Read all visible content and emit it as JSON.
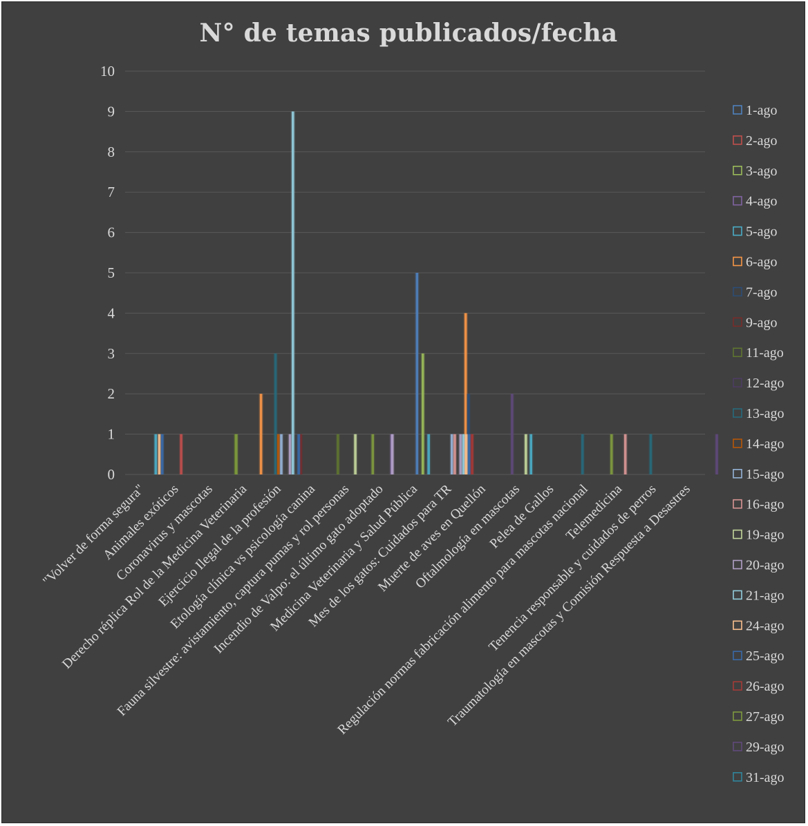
{
  "chart_data": {
    "type": "bar",
    "title": "N° de temas publicados/fecha",
    "xlabel": "",
    "ylabel": "",
    "ylim": [
      0,
      10
    ],
    "yticks": [
      0,
      1,
      2,
      3,
      4,
      5,
      6,
      7,
      8,
      9,
      10
    ],
    "grid": true,
    "legend_position": "right",
    "categories": [
      "\"Volver de forma segura\"",
      "Animales exóticos",
      "Coronavirus y mascotas",
      "Derecho réplica Rol de la Medicina Veterinaria",
      "Ejercicio Ilegal de la profesión",
      "Etología clínica vs psicología canina",
      "Fauna silvestre: avistamiento, captura pumas y rol personas",
      "Incendio de Valpo: el último gato adoptado",
      "Medicina Veterinaria y Salud Pública",
      "Mes de los gatos: Cuidados para TR",
      "Muerte de aves en Quellón",
      "Oftalmología en mascotas",
      "Pelea de Gallos",
      "Regulación normas fabricación alimento para mascotas nacional",
      "Telemedicina",
      "Tenencia responsable y cuidados de perros",
      "Traumatología en mascotas y Comisión Respuesta a Desastres"
    ],
    "series": [
      {
        "name": "1-ago",
        "color": "#4f81bd",
        "values": [
          0,
          0,
          0,
          0,
          0,
          0,
          0,
          0,
          0,
          5,
          0,
          0,
          0,
          0,
          0,
          0,
          0
        ]
      },
      {
        "name": "2-ago",
        "color": "#c0504d",
        "values": [
          0,
          0,
          1,
          0,
          0,
          0,
          0,
          0,
          0,
          0,
          0,
          0,
          0,
          0,
          0,
          0,
          0
        ]
      },
      {
        "name": "3-ago",
        "color": "#9bbb59",
        "values": [
          0,
          0,
          0,
          0,
          0,
          0,
          0,
          0,
          0,
          3,
          0,
          0,
          0,
          0,
          0,
          0,
          0
        ]
      },
      {
        "name": "4-ago",
        "color": "#8064a2",
        "values": [
          0,
          0,
          0,
          0,
          0,
          0,
          0,
          0,
          1,
          0,
          0,
          0,
          0,
          0,
          0,
          0,
          0
        ]
      },
      {
        "name": "5-ago",
        "color": "#4bacc6",
        "values": [
          0,
          1,
          0,
          0,
          0,
          0,
          0,
          0,
          0,
          1,
          0,
          0,
          1,
          0,
          0,
          0,
          0
        ]
      },
      {
        "name": "6-ago",
        "color": "#f79646",
        "values": [
          0,
          0,
          0,
          0,
          2,
          0,
          0,
          0,
          0,
          0,
          4,
          0,
          0,
          0,
          0,
          0,
          0
        ]
      },
      {
        "name": "7-ago",
        "color": "#2c4d75",
        "values": [
          0,
          0,
          0,
          0,
          0,
          0,
          0,
          0,
          0,
          0,
          2,
          0,
          0,
          0,
          0,
          0,
          0
        ]
      },
      {
        "name": "9-ago",
        "color": "#772c2a",
        "values": [
          0,
          0,
          0,
          0,
          0,
          1,
          0,
          0,
          0,
          0,
          1,
          0,
          0,
          0,
          0,
          0,
          0
        ]
      },
      {
        "name": "11-ago",
        "color": "#5f7530",
        "values": [
          0,
          0,
          0,
          1,
          0,
          0,
          1,
          0,
          0,
          0,
          0,
          0,
          0,
          0,
          0,
          0,
          0
        ]
      },
      {
        "name": "12-ago",
        "color": "#4d3b62",
        "values": [
          0,
          0,
          0,
          0,
          0,
          0,
          0,
          0,
          0,
          0,
          0,
          0,
          0,
          0,
          0,
          0,
          0
        ]
      },
      {
        "name": "13-ago",
        "color": "#276a7c",
        "values": [
          0,
          0,
          0,
          0,
          3,
          0,
          0,
          0,
          0,
          0,
          0,
          0,
          0,
          1,
          0,
          1,
          0
        ]
      },
      {
        "name": "14-ago",
        "color": "#b65708",
        "values": [
          0,
          0,
          0,
          0,
          1,
          0,
          0,
          0,
          0,
          0,
          0,
          0,
          0,
          0,
          0,
          0,
          0
        ]
      },
      {
        "name": "15-ago",
        "color": "#95b3d7",
        "values": [
          0,
          0,
          0,
          0,
          1,
          0,
          0,
          0,
          0,
          1,
          0,
          0,
          0,
          0,
          0,
          0,
          0
        ]
      },
      {
        "name": "16-ago",
        "color": "#d99694",
        "values": [
          0,
          0,
          0,
          0,
          0,
          0,
          0,
          0,
          0,
          1,
          0,
          0,
          0,
          0,
          1,
          0,
          0
        ]
      },
      {
        "name": "19-ago",
        "color": "#c3d69b",
        "values": [
          0,
          0,
          0,
          0,
          0,
          0,
          1,
          0,
          0,
          0,
          0,
          1,
          0,
          0,
          0,
          0,
          0
        ]
      },
      {
        "name": "20-ago",
        "color": "#b2a1c7",
        "values": [
          0,
          0,
          0,
          0,
          1,
          0,
          0,
          1,
          0,
          1,
          0,
          0,
          0,
          0,
          0,
          0,
          0
        ]
      },
      {
        "name": "21-ago",
        "color": "#93cddd",
        "values": [
          0,
          0,
          0,
          0,
          9,
          0,
          0,
          0,
          0,
          1,
          0,
          0,
          0,
          0,
          0,
          0,
          0
        ]
      },
      {
        "name": "24-ago",
        "color": "#fac08f",
        "values": [
          1,
          0,
          0,
          0,
          0,
          0,
          0,
          0,
          0,
          1,
          0,
          0,
          0,
          0,
          0,
          0,
          0
        ]
      },
      {
        "name": "25-ago",
        "color": "#3a6aa8",
        "values": [
          1,
          0,
          0,
          0,
          1,
          0,
          0,
          0,
          0,
          1,
          0,
          0,
          0,
          0,
          0,
          0,
          0
        ]
      },
      {
        "name": "26-ago",
        "color": "#a33b38",
        "values": [
          0,
          0,
          0,
          0,
          0,
          0,
          0,
          0,
          0,
          1,
          0,
          0,
          0,
          0,
          0,
          0,
          0
        ]
      },
      {
        "name": "27-ago",
        "color": "#7e9a3f",
        "values": [
          0,
          0,
          1,
          0,
          0,
          0,
          1,
          0,
          0,
          0,
          0,
          0,
          0,
          1,
          0,
          0,
          0
        ]
      },
      {
        "name": "29-ago",
        "color": "#604a7b",
        "values": [
          0,
          0,
          0,
          0,
          0,
          0,
          0,
          0,
          0,
          0,
          2,
          0,
          0,
          0,
          0,
          0,
          1
        ]
      },
      {
        "name": "31-ago",
        "color": "#31859c",
        "values": [
          0,
          0,
          0,
          0,
          0,
          0,
          0,
          0,
          0,
          0,
          0,
          0,
          0,
          0,
          0,
          0,
          0
        ]
      }
    ]
  }
}
